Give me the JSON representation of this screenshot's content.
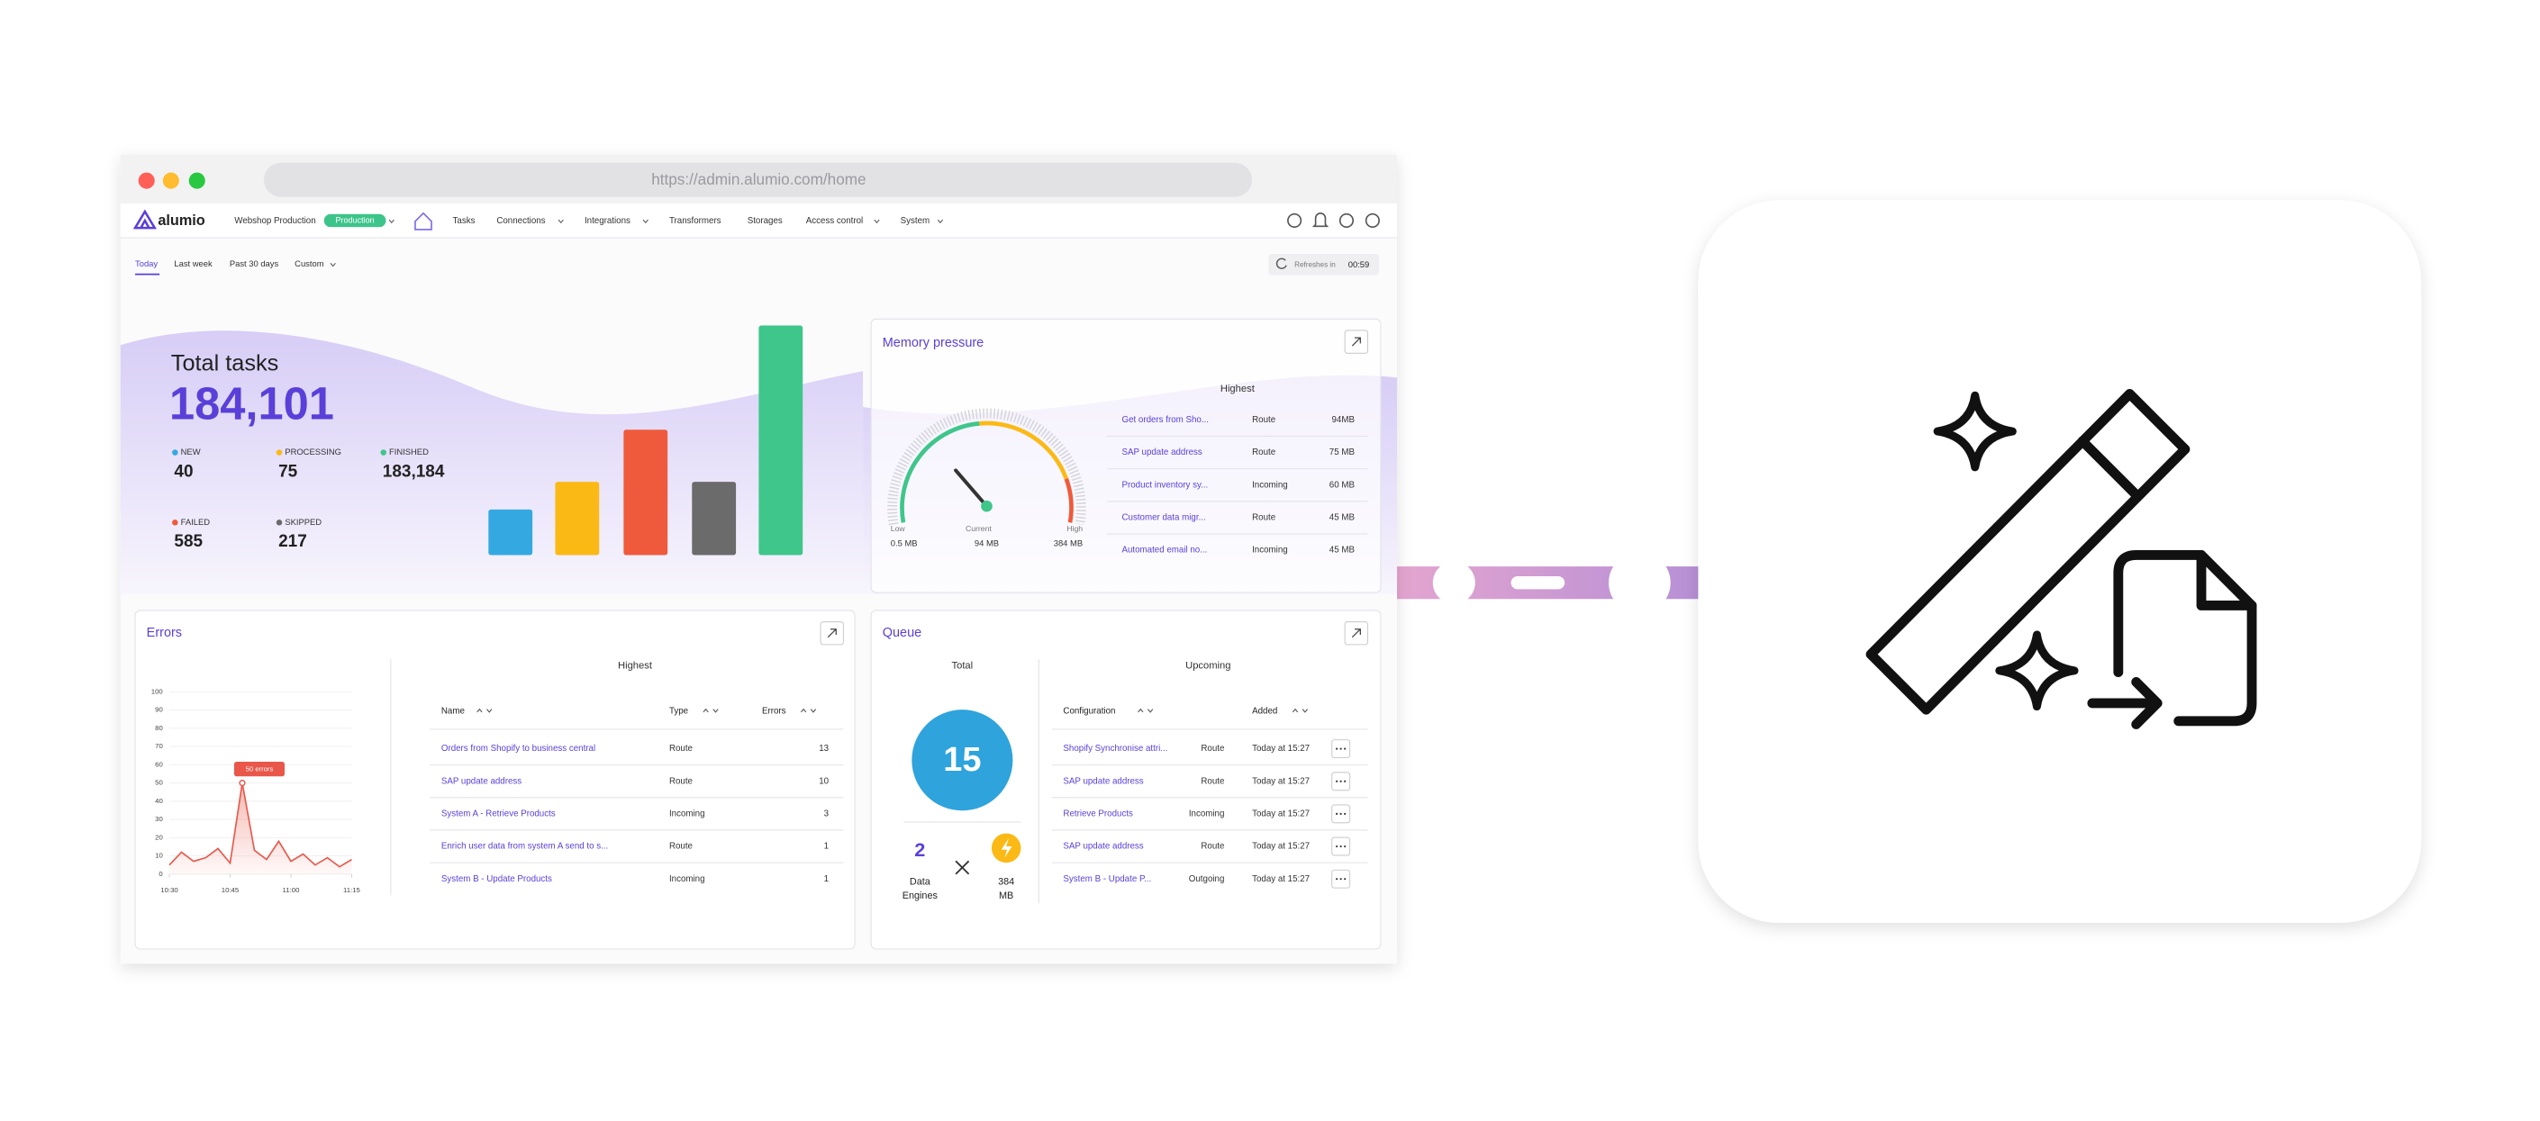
{
  "browser": {
    "url": "https://admin.alumio.com/home"
  },
  "nav": {
    "logo": "alumio",
    "environment": "Webshop Production",
    "badge": "Production",
    "items": [
      "Tasks",
      "Connections",
      "Integrations",
      "Transformers",
      "Storages",
      "Access control",
      "System"
    ]
  },
  "filters": {
    "tabs": [
      "Today",
      "Last week",
      "Past 30 days",
      "Custom"
    ],
    "refresh_label": "Refreshes in",
    "refresh_time": "00:59"
  },
  "total_tasks": {
    "title": "Total tasks",
    "value": "184,101",
    "statuses": [
      {
        "label": "NEW",
        "value": "40",
        "color": "#34a9e1"
      },
      {
        "label": "PROCESSING",
        "value": "75",
        "color": "#fbb916"
      },
      {
        "label": "FINISHED",
        "value": "183,184",
        "color": "#3fc68a"
      },
      {
        "label": "FAILED",
        "value": "585",
        "color": "#f05a3c"
      },
      {
        "label": "SKIPPED",
        "value": "217",
        "color": "#6b6b6b"
      }
    ]
  },
  "memory": {
    "title": "Memory pressure",
    "highest": "Highest",
    "rows": [
      [
        "Get orders from Sho...",
        "Route",
        "94MB"
      ],
      [
        "SAP update address",
        "Route",
        "75 MB"
      ],
      [
        "Product inventory sy...",
        "Incoming",
        "60 MB"
      ],
      [
        "Customer data migr...",
        "Route",
        "45 MB"
      ],
      [
        "Automated email no...",
        "Incoming",
        "45 MB"
      ]
    ],
    "gauge": {
      "low_label": "Low",
      "low": "0.5 MB",
      "current_label": "Current",
      "current": "94 MB",
      "high_label": "High",
      "high": "384 MB"
    }
  },
  "errors": {
    "title": "Errors",
    "highest": "Highest",
    "columns": [
      "Name",
      "Type",
      "Errors"
    ],
    "rows": [
      [
        "Orders from Shopify to business central",
        "Route",
        "13"
      ],
      [
        "SAP update address",
        "Route",
        "10"
      ],
      [
        "System A - Retrieve Products",
        "Incoming",
        "3"
      ],
      [
        "Enrich user data from system A send to s...",
        "Route",
        "1"
      ],
      [
        "System B - Update Products",
        "Incoming",
        "1"
      ]
    ]
  },
  "chart_data": {
    "type": "line",
    "annotation": "50 errors",
    "color": "#e8574a",
    "x": [
      0,
      1,
      2,
      3,
      4,
      5,
      6,
      7,
      8,
      9,
      10,
      11,
      12,
      13,
      14,
      15
    ],
    "values": [
      5,
      12,
      7,
      9,
      14,
      6,
      50,
      13,
      8,
      18,
      7,
      11,
      5,
      9,
      4,
      8
    ],
    "xlim": [
      0,
      15
    ],
    "xticks": [
      {
        "value": 0,
        "label": "10:30"
      },
      {
        "value": 5,
        "label": "10:45"
      },
      {
        "value": 10,
        "label": "11:00"
      },
      {
        "value": 15,
        "label": "11:15"
      }
    ],
    "ylim": [
      0,
      100
    ],
    "yticks": [
      0,
      10,
      20,
      30,
      40,
      50,
      60,
      70,
      80,
      90,
      100
    ]
  },
  "queue": {
    "title": "Queue",
    "total_label": "Total",
    "total": "15",
    "engines": "2",
    "engines_label": [
      "Data",
      "Engines"
    ],
    "memory": [
      "384",
      "MB"
    ],
    "upcoming": "Upcoming",
    "columns": [
      "Configuration",
      "Added"
    ],
    "rows": [
      [
        "Shopify Synchronise attri...",
        "Route",
        "Today at 15:27"
      ],
      [
        "SAP update address",
        "Route",
        "Today at 15:27"
      ],
      [
        "Retrieve Products",
        "Incoming",
        "Today at 15:27"
      ],
      [
        "SAP update address",
        "Route",
        "Today at 15:27"
      ],
      [
        "System B - Update P...",
        "Outgoing",
        "Today at 15:27"
      ]
    ]
  }
}
